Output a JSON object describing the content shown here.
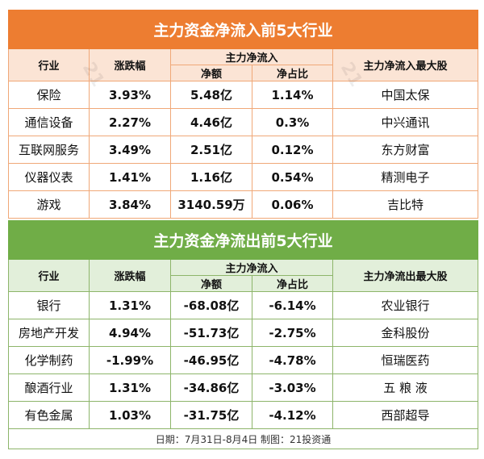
{
  "inflow": {
    "title": "主力资金净流入前5大行业",
    "headers": {
      "industry": "行业",
      "change": "涨跌幅",
      "net": "主力净流入",
      "amount": "净额",
      "ratio": "净占比",
      "top": "主力净流入最大股"
    },
    "rows": [
      {
        "industry": "保险",
        "change": "3.93%",
        "amount": "5.48亿",
        "ratio": "1.14%",
        "top": "中国太保"
      },
      {
        "industry": "通信设备",
        "change": "2.27%",
        "amount": "4.46亿",
        "ratio": "0.3%",
        "top": "中兴通讯"
      },
      {
        "industry": "互联网服务",
        "change": "3.49%",
        "amount": "2.51亿",
        "ratio": "0.12%",
        "top": "东方财富"
      },
      {
        "industry": "仪器仪表",
        "change": "1.41%",
        "amount": "1.16亿",
        "ratio": "0.54%",
        "top": "精测电子"
      },
      {
        "industry": "游戏",
        "change": "3.84%",
        "amount": "3140.59万",
        "ratio": "0.06%",
        "top": "吉比特"
      }
    ]
  },
  "outflow": {
    "title": "主力资金净流出前5大行业",
    "headers": {
      "industry": "行业",
      "change": "涨跌幅",
      "net": "主力净流入",
      "amount": "净额",
      "ratio": "净占比",
      "top": "主力净流出最大股"
    },
    "rows": [
      {
        "industry": "银行",
        "change": "1.31%",
        "amount": "-68.08亿",
        "ratio": "-6.14%",
        "top": "农业银行"
      },
      {
        "industry": "房地产开发",
        "change": "4.94%",
        "amount": "-51.73亿",
        "ratio": "-2.75%",
        "top": "金科股份"
      },
      {
        "industry": "化学制药",
        "change": "-1.99%",
        "amount": "-46.95亿",
        "ratio": "-4.78%",
        "top": "恒瑞医药"
      },
      {
        "industry": "酿酒行业",
        "change": "1.31%",
        "amount": "-34.86亿",
        "ratio": "-3.03%",
        "top": "五 粮 液"
      },
      {
        "industry": "有色金属",
        "change": "1.03%",
        "amount": "-31.75亿",
        "ratio": "-4.12%",
        "top": "西部超导"
      }
    ]
  },
  "footer": "日期：7月31日-8月4日 制图：21投资通",
  "watermark": "21财经",
  "colors": {
    "inflow": "#ED7D31",
    "outflow": "#70AD47"
  }
}
